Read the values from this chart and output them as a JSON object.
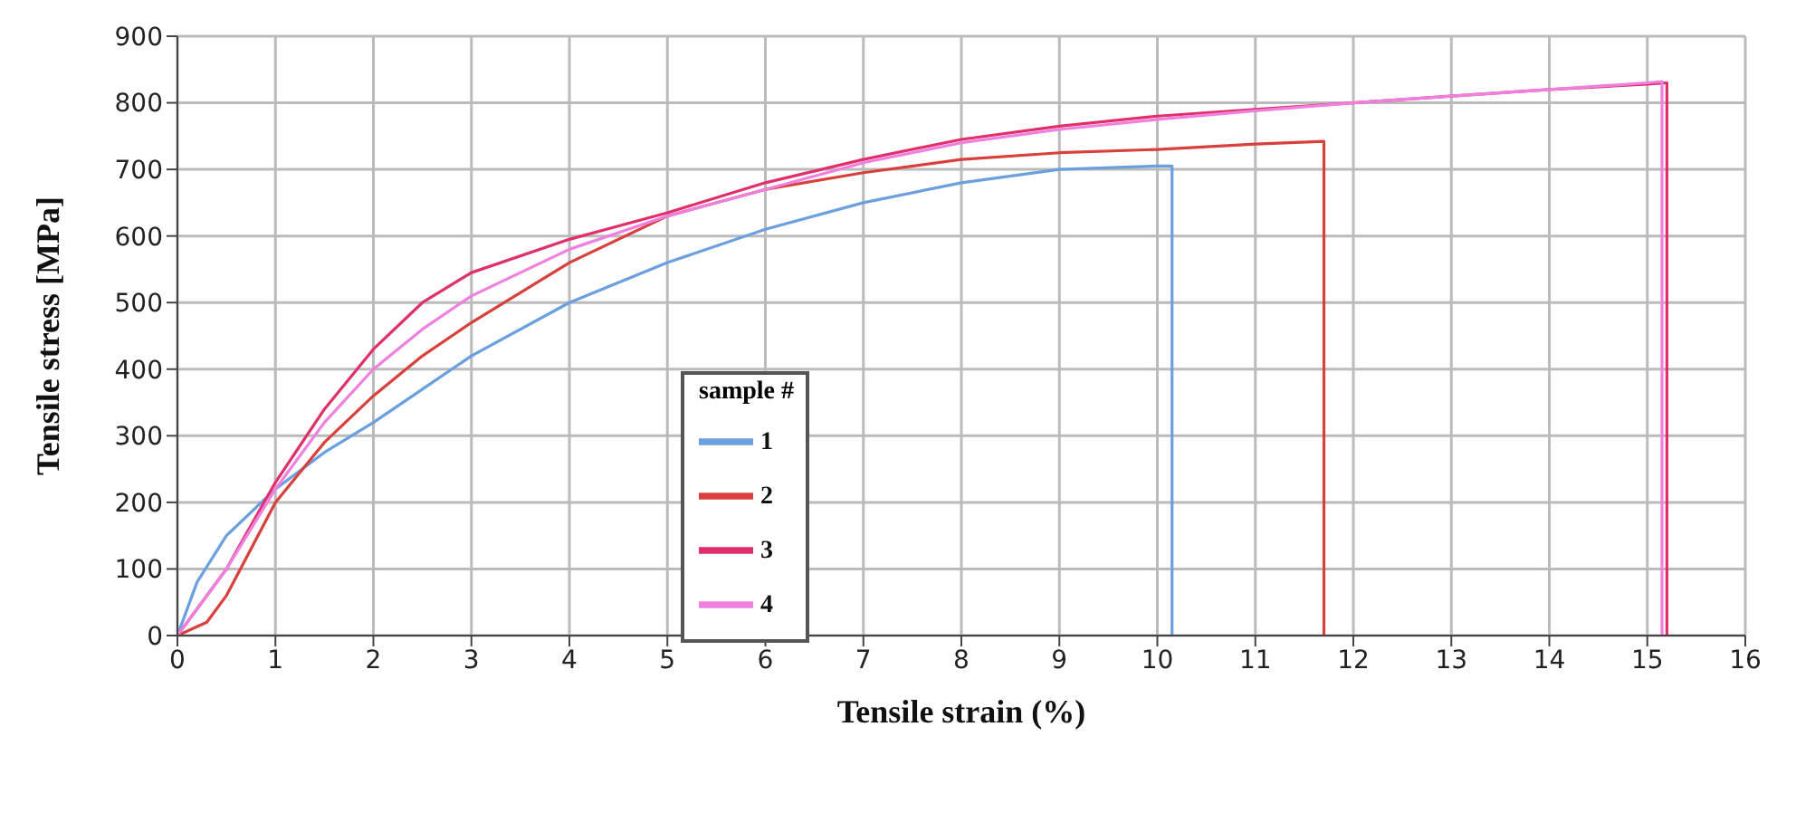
{
  "chart_data": {
    "type": "line",
    "xlabel": "Tensile strain (%)",
    "ylabel": "Tensile stress [MPa]",
    "legend_title": "sample #",
    "xlim": [
      0,
      16
    ],
    "xticks": [
      0,
      1,
      2,
      3,
      4,
      5,
      6,
      7,
      8,
      9,
      10,
      11,
      12,
      13,
      14,
      15,
      16
    ],
    "ylim": [
      0,
      900
    ],
    "yticks": [
      0,
      100,
      200,
      300,
      400,
      500,
      600,
      700,
      800,
      900
    ],
    "grid": true,
    "legend": "bottom",
    "marker": "none",
    "line_style": "solid",
    "series": [
      {
        "name": "1",
        "color": "#6a9fe0",
        "x": [
          0,
          0.2,
          0.5,
          1,
          1.5,
          2,
          2.5,
          3,
          4,
          5,
          6,
          7,
          8,
          9,
          10,
          10.15,
          10.15
        ],
        "values": [
          0,
          80,
          150,
          220,
          275,
          320,
          370,
          420,
          500,
          560,
          610,
          650,
          680,
          700,
          705,
          705,
          0
        ]
      },
      {
        "name": "2",
        "color": "#d8403c",
        "x": [
          0,
          0.3,
          0.5,
          1,
          1.5,
          2,
          2.5,
          3,
          4,
          5,
          6,
          7,
          8,
          9,
          10,
          11,
          11.7,
          11.7
        ],
        "values": [
          0,
          20,
          60,
          200,
          290,
          360,
          420,
          470,
          560,
          630,
          670,
          695,
          715,
          725,
          730,
          738,
          742,
          0
        ]
      },
      {
        "name": "3",
        "color": "#e0306a",
        "x": [
          0,
          0.5,
          1,
          1.5,
          2,
          2.5,
          3,
          4,
          5,
          6,
          7,
          8,
          9,
          10,
          11,
          12,
          13,
          14,
          15,
          15.2,
          15.2
        ],
        "values": [
          0,
          100,
          230,
          340,
          430,
          500,
          545,
          595,
          635,
          680,
          715,
          745,
          765,
          780,
          790,
          800,
          810,
          820,
          828,
          830,
          0
        ]
      },
      {
        "name": "4",
        "color": "#f080e0",
        "x": [
          0,
          0.5,
          1,
          1.5,
          2,
          2.5,
          3,
          4,
          5,
          6,
          7,
          8,
          9,
          10,
          11,
          12,
          13,
          14,
          15,
          15.15,
          15.15
        ],
        "values": [
          0,
          100,
          220,
          320,
          400,
          460,
          510,
          580,
          630,
          670,
          710,
          740,
          760,
          775,
          788,
          800,
          810,
          820,
          830,
          832,
          0
        ]
      }
    ]
  }
}
